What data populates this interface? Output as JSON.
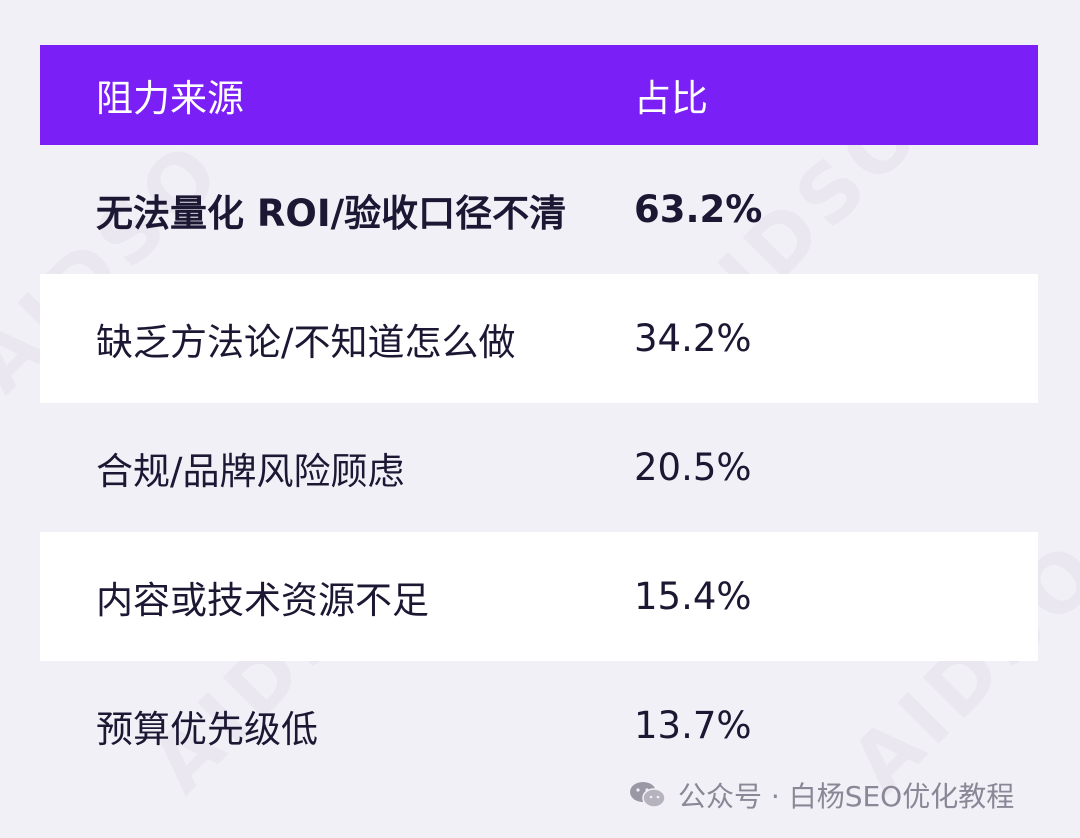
{
  "watermark": "AIDSO",
  "table": {
    "header": {
      "col1": "阻力来源",
      "col2": "占比"
    },
    "rows": [
      {
        "source": "无法量化 ROI/验收口径不清",
        "share": "63.2%"
      },
      {
        "source": "缺乏方法论/不知道怎么做",
        "share": "34.2%"
      },
      {
        "source": "合规/品牌风险顾虑",
        "share": "20.5%"
      },
      {
        "source": "内容或技术资源不足",
        "share": "15.4%"
      },
      {
        "source": "预算优先级低",
        "share": "13.7%"
      }
    ]
  },
  "footer": {
    "icon": "wechat-icon",
    "text": "公众号 · 白杨SEO优化教程"
  },
  "colors": {
    "header_bg": "#7b1ff7",
    "page_bg": "#f2f0f7",
    "text": "#1c1733"
  }
}
